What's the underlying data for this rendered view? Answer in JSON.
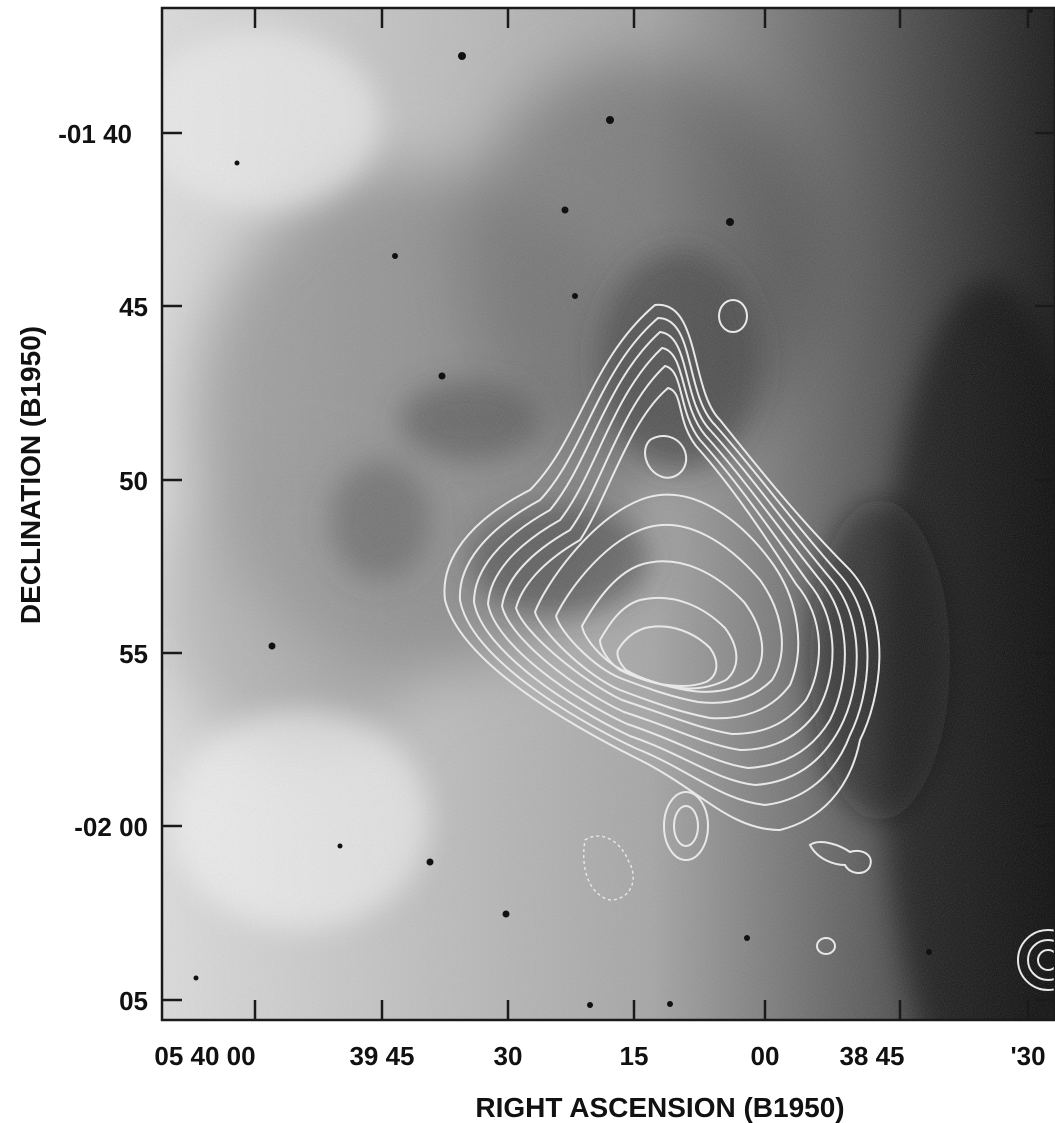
{
  "figure": {
    "xlabel": "RIGHT ASCENSION (B1950)",
    "ylabel": "DECLINATION (B1950)",
    "x_tick_labels": [
      "05 40 00",
      "39 45",
      "30",
      "15",
      "00",
      "38 45",
      "'30"
    ],
    "y_tick_labels": [
      "-01 40",
      "45",
      "50",
      "55",
      "-02 00",
      "05"
    ],
    "colors": {
      "ink": "#111111",
      "contour": "#e8e8e8",
      "frame": "#1a1a1a"
    }
  }
}
